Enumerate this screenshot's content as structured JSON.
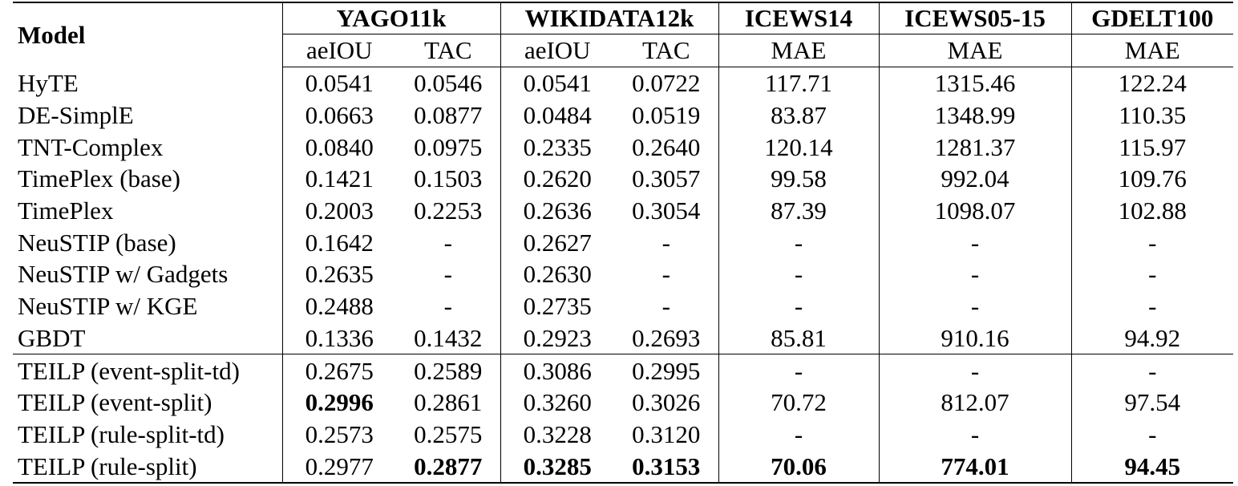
{
  "header": {
    "model": "Model",
    "groups": [
      "YAGO11k",
      "WIKIDATA12k",
      "ICEWS14",
      "ICEWS05-15",
      "GDELT100"
    ],
    "metrics": [
      "aeIOU",
      "TAC",
      "aeIOU",
      "TAC",
      "MAE",
      "MAE",
      "MAE"
    ]
  },
  "rows_baseline": [
    [
      "HyTE",
      "0.0541",
      "0.0546",
      "0.0541",
      "0.0722",
      "117.71",
      "1315.46",
      "122.24"
    ],
    [
      "DE-SimplE",
      "0.0663",
      "0.0877",
      "0.0484",
      "0.0519",
      "83.87",
      "1348.99",
      "110.35"
    ],
    [
      "TNT-Complex",
      "0.0840",
      "0.0975",
      "0.2335",
      "0.2640",
      "120.14",
      "1281.37",
      "115.97"
    ],
    [
      "TimePlex (base)",
      "0.1421",
      "0.1503",
      "0.2620",
      "0.3057",
      "99.58",
      "992.04",
      "109.76"
    ],
    [
      "TimePlex",
      "0.2003",
      "0.2253",
      "0.2636",
      "0.3054",
      "87.39",
      "1098.07",
      "102.88"
    ],
    [
      "NeuSTIP (base)",
      "0.1642",
      "-",
      "0.2627",
      "-",
      "-",
      "-",
      "-"
    ],
    [
      "NeuSTIP w/ Gadgets",
      "0.2635",
      "-",
      "0.2630",
      "-",
      "-",
      "-",
      "-"
    ],
    [
      "NeuSTIP w/ KGE",
      "0.2488",
      "-",
      "0.2735",
      "-",
      "-",
      "-",
      "-"
    ],
    [
      "GBDT",
      "0.1336",
      "0.1432",
      "0.2923",
      "0.2693",
      "85.81",
      "910.16",
      "94.92"
    ]
  ],
  "rows_teilp": [
    [
      "TEILP (event-split-td)",
      "0.2675",
      "0.2589",
      "0.3086",
      "0.2995",
      "-",
      "-",
      "-"
    ],
    [
      "TEILP (event-split)",
      "0.2996",
      "0.2861",
      "0.3260",
      "0.3026",
      "70.72",
      "812.07",
      "97.54"
    ],
    [
      "TEILP (rule-split-td)",
      "0.2573",
      "0.2575",
      "0.3228",
      "0.3120",
      "-",
      "-",
      "-"
    ],
    [
      "TEILP (rule-split)",
      "0.2977",
      "0.2877",
      "0.3285",
      "0.3153",
      "70.06",
      "774.01",
      "94.45"
    ]
  ]
}
